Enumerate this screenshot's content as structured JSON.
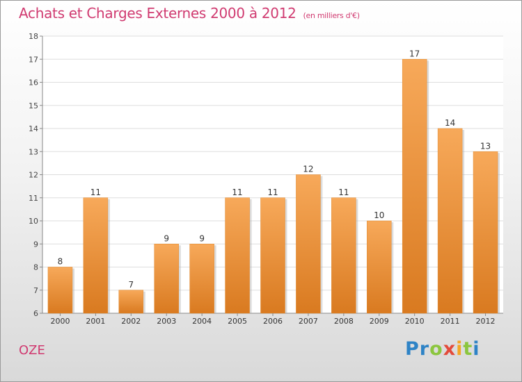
{
  "title": "Achats et Charges Externes 2000 à 2012",
  "unit": "(en milliers d'€)",
  "town": "OZE",
  "logo": {
    "letters": [
      "P",
      "r",
      "o",
      "x",
      "i",
      "t",
      "i"
    ],
    "colors": [
      "#2e83c6",
      "#2e83c6",
      "#8cc63f",
      "#e34b3b",
      "#f5a623",
      "#8cc63f",
      "#2e83c6"
    ]
  },
  "chart_data": {
    "type": "bar",
    "categories": [
      "2000",
      "2001",
      "2002",
      "2003",
      "2004",
      "2005",
      "2006",
      "2007",
      "2008",
      "2009",
      "2010",
      "2011",
      "2012"
    ],
    "values": [
      8,
      11,
      7,
      9,
      9,
      11,
      11,
      12,
      11,
      10,
      17,
      14,
      13
    ],
    "data_labels": [
      "8",
      "11",
      "7",
      "9",
      "9",
      "11",
      "11",
      "12",
      "11",
      "10",
      "17",
      "14",
      "13"
    ],
    "y_ticks": [
      6,
      7,
      8,
      9,
      10,
      11,
      12,
      13,
      14,
      15,
      16,
      17,
      18
    ],
    "ylim": [
      6,
      18
    ],
    "grid": true,
    "bar_color_top": "#f7a95a",
    "bar_color_bottom": "#d97a20"
  }
}
